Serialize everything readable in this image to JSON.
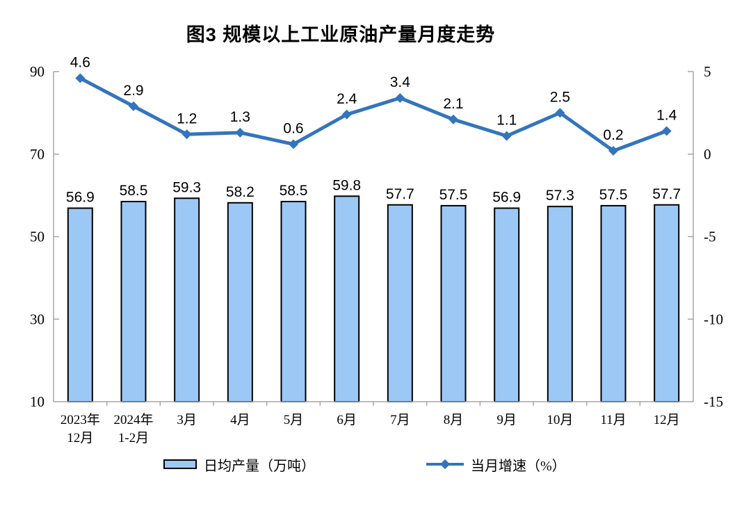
{
  "title": "图3 规模以上工业原油产量月度走势",
  "colors": {
    "bar_fill": "#9CC8F5",
    "bar_stroke": "#000000",
    "line": "#3375BD",
    "axis": "#A6A6A6",
    "text": "#000000",
    "background": "#FFFFFF"
  },
  "chart_data": {
    "type": "bar+line combo",
    "title": "图3 规模以上工业原油产量月度走势",
    "categories": [
      "2023年\n12月",
      "2024年\n1-2月",
      "3月",
      "4月",
      "5月",
      "6月",
      "7月",
      "8月",
      "9月",
      "10月",
      "11月",
      "12月"
    ],
    "series": [
      {
        "name": "日均产量（万吨）",
        "type": "bar",
        "axis": "left",
        "values": [
          56.9,
          58.5,
          59.3,
          58.2,
          58.5,
          59.8,
          57.7,
          57.5,
          56.9,
          57.3,
          57.5,
          57.7
        ]
      },
      {
        "name": "当月增速（%）",
        "type": "line",
        "axis": "right",
        "values": [
          4.6,
          2.9,
          1.2,
          1.3,
          0.6,
          2.4,
          3.4,
          2.1,
          1.1,
          2.5,
          0.2,
          1.4
        ]
      }
    ],
    "left_axis": {
      "min": 10,
      "max": 90,
      "ticks": [
        10,
        30,
        50,
        70,
        90
      ]
    },
    "right_axis": {
      "min": -15,
      "max": 5,
      "ticks": [
        -15,
        -10,
        -5,
        0,
        5
      ]
    },
    "grid": false,
    "data_labels": true,
    "legend_position": "bottom"
  }
}
